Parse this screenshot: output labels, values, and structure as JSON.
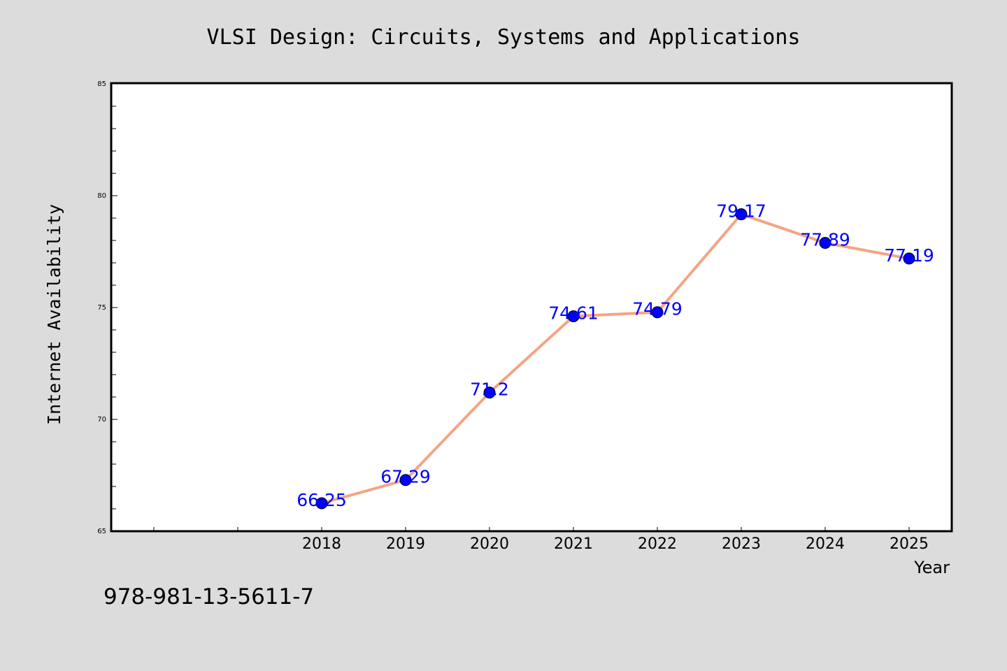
{
  "chart_data": {
    "type": "line",
    "title": "VLSI Design: Circuits, Systems and Applications",
    "xlabel": "Year",
    "ylabel": "Internet Availability",
    "categories": [
      "2018",
      "2019",
      "2020",
      "2021",
      "2022",
      "2023",
      "2024",
      "2025"
    ],
    "series": [
      {
        "values": [
          66.25,
          67.29,
          71.2,
          74.61,
          74.79,
          79.17,
          77.89,
          77.19
        ]
      }
    ],
    "data_labels": [
      "66.25",
      "67.29",
      "71.2",
      "74.61",
      "74.79",
      "79.17",
      "77.89",
      "77.19"
    ],
    "ylim": [
      65,
      85
    ],
    "y_ticks": [
      "65",
      "70",
      "75",
      "80",
      "85"
    ],
    "grid": false,
    "line_color": "#f4a582",
    "marker_color": "#0000ff",
    "label_color": "#0000ff"
  },
  "footer_text": "978-981-13-5611-7"
}
